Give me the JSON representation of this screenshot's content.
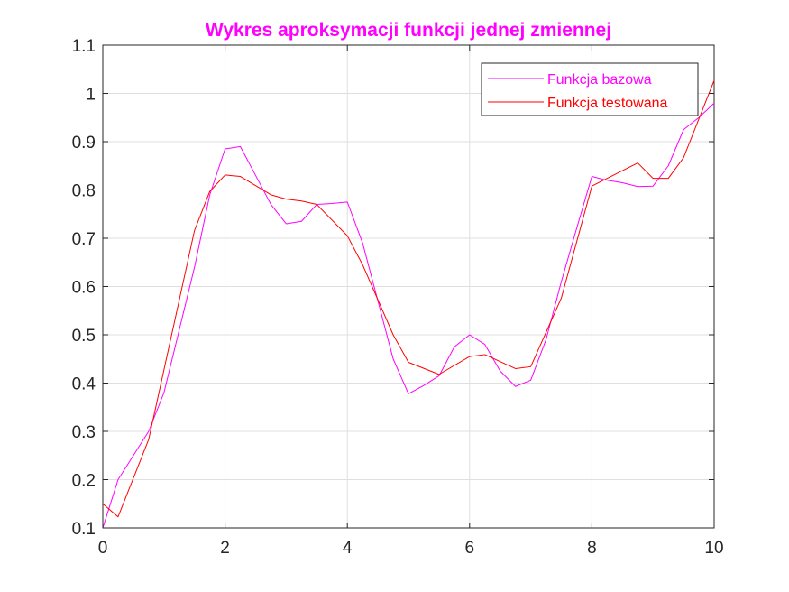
{
  "chart_data": {
    "type": "line",
    "title": "Wykres aproksymacji funkcji jednej zmiennej",
    "title_color": "#ff00ff",
    "xlim": [
      0,
      10
    ],
    "ylim": [
      0.1,
      1.1
    ],
    "x_ticks": [
      0,
      2,
      4,
      6,
      8,
      10
    ],
    "y_ticks": [
      0.1,
      0.2,
      0.3,
      0.4,
      0.5,
      0.6,
      0.7,
      0.8,
      0.9,
      1.0,
      1.1
    ],
    "x_tick_labels": [
      "0",
      "2",
      "4",
      "6",
      "8",
      "10"
    ],
    "y_tick_labels": [
      "0.1",
      "0.2",
      "0.3",
      "0.4",
      "0.5",
      "0.6",
      "0.7",
      "0.8",
      "0.9",
      "1",
      "1.1"
    ],
    "grid": true,
    "legend_position": "top-right",
    "series": [
      {
        "name": "Funkcja bazowa",
        "color": "#ff00ff",
        "x": [
          0,
          0.25,
          0.5,
          0.75,
          1.0,
          1.25,
          1.5,
          1.75,
          2.0,
          2.25,
          2.5,
          2.75,
          3.0,
          3.25,
          3.5,
          3.75,
          4.0,
          4.25,
          4.5,
          4.75,
          5.0,
          5.25,
          5.5,
          5.75,
          6.0,
          6.25,
          6.5,
          6.75,
          7.0,
          7.25,
          7.5,
          7.75,
          8.0,
          8.25,
          8.5,
          8.75,
          9.0,
          9.25,
          9.5,
          9.75,
          10.0
        ],
        "y": [
          0.1,
          0.2,
          0.25,
          0.3,
          0.38,
          0.51,
          0.64,
          0.79,
          0.885,
          0.89,
          0.83,
          0.77,
          0.73,
          0.735,
          0.77,
          0.772,
          0.775,
          0.69,
          0.57,
          0.45,
          0.378,
          0.395,
          0.415,
          0.475,
          0.5,
          0.48,
          0.425,
          0.393,
          0.406,
          0.49,
          0.61,
          0.72,
          0.828,
          0.82,
          0.815,
          0.807,
          0.808,
          0.85,
          0.925,
          0.95,
          0.98
        ]
      },
      {
        "name": "Funkcja testowana",
        "color": "#ff0000",
        "x": [
          0,
          0.25,
          0.75,
          1.5,
          1.75,
          2.0,
          2.25,
          2.75,
          3.0,
          3.25,
          3.5,
          4.0,
          4.25,
          4.75,
          5.0,
          5.5,
          6.0,
          6.25,
          6.75,
          7.0,
          7.5,
          8.0,
          8.75,
          9.0,
          9.25,
          9.5,
          10.0
        ],
        "y": [
          0.15,
          0.123,
          0.283,
          0.716,
          0.797,
          0.831,
          0.828,
          0.79,
          0.781,
          0.777,
          0.77,
          0.705,
          0.645,
          0.5,
          0.443,
          0.418,
          0.455,
          0.459,
          0.43,
          0.434,
          0.576,
          0.808,
          0.856,
          0.824,
          0.824,
          0.867,
          1.027
        ]
      }
    ]
  }
}
